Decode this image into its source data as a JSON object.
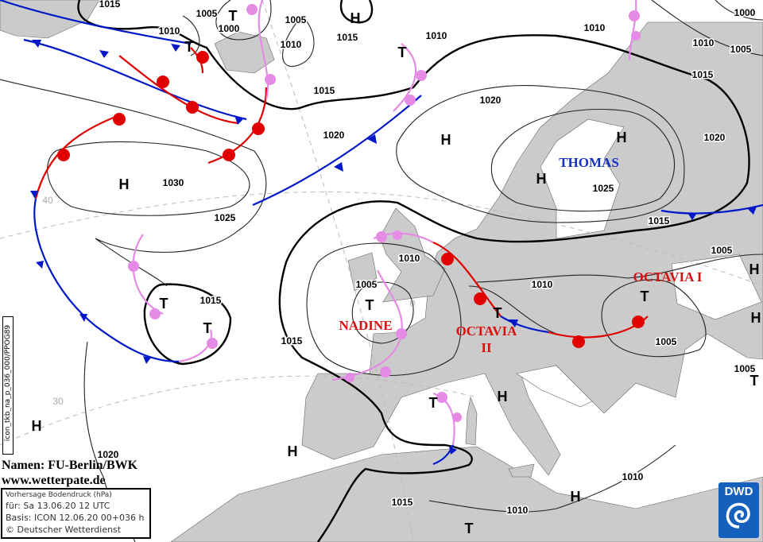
{
  "map": {
    "colors": {
      "land": "#cbcbcb",
      "sea": "#ffffff",
      "cold_front": "#0018c8",
      "warm_front": "#e00000",
      "occlusion": "#e58ae5",
      "name_high": "#1530c0",
      "name_low": "#d81010"
    },
    "isobar_labels": [
      "1015",
      "1010",
      "1005",
      "1000",
      "1005",
      "1010",
      "1015",
      "1010",
      "1015",
      "1020",
      "1030",
      "1025",
      "1020",
      "1025",
      "1010",
      "1000",
      "1010",
      "1005",
      "1015",
      "1020",
      "1015",
      "1005",
      "1010",
      "1005",
      "1015",
      "1015",
      "1010",
      "1005",
      "1005",
      "1020",
      "1015",
      "1010",
      "1010"
    ],
    "pressure_centers": [
      "H",
      "T",
      "T",
      "T",
      "H",
      "H",
      "H",
      "H",
      "T",
      "T",
      "T",
      "T",
      "T",
      "H",
      "H",
      "T",
      "H",
      "T",
      "H",
      "H",
      "H",
      "T"
    ],
    "system_names": {
      "thomas": "THOMAS",
      "nadine": "NADINE",
      "octavia_2_a": "OCTAVIA",
      "octavia_2_b": "II",
      "octavia_1": "OCTAVIA I"
    },
    "latitude_labels": [
      "40",
      "30",
      "0"
    ]
  },
  "credit": {
    "names": "Namen: FU-Berlin/BWK",
    "url": "www.wetterpate.de"
  },
  "info": {
    "title": "Vorhersage Bodendruck (hPa)",
    "valid": "für:  Sa 13.06.20  12 UTC",
    "basis": "Basis: ICON  12.06.20 00+036 h",
    "copyright": "© Deutscher Wetterdienst"
  },
  "model_code": "icon_tkb_na_p_036_000/PPOG89",
  "logo": {
    "text": "DWD",
    "icon": "dwd-swirl-icon"
  }
}
